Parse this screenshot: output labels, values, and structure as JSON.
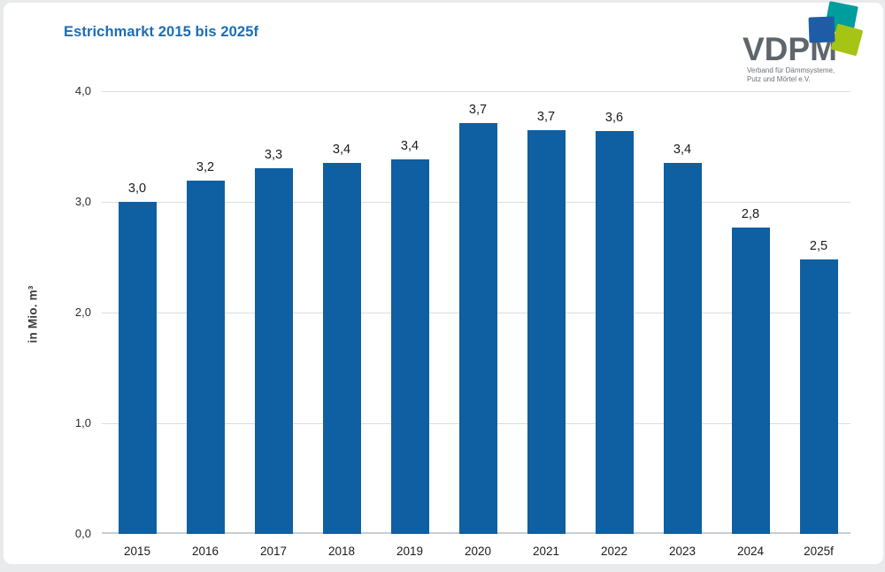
{
  "page": {
    "background_color": "#e8eaec",
    "card_color": "#ffffff"
  },
  "chart_data": {
    "type": "bar",
    "title": "Estrichmarkt 2015 bis 2025f",
    "title_color": "#1c6db4",
    "xlabel": "",
    "ylabel": "in Mio. m³",
    "categories": [
      "2015",
      "2016",
      "2017",
      "2018",
      "2019",
      "2020",
      "2021",
      "2022",
      "2023",
      "2024",
      "2025f"
    ],
    "values": [
      3.0,
      3.2,
      3.3,
      3.4,
      3.4,
      3.7,
      3.7,
      3.6,
      3.4,
      2.8,
      2.5
    ],
    "values_precise": [
      3.0,
      3.19,
      3.3,
      3.35,
      3.38,
      3.71,
      3.65,
      3.64,
      3.35,
      2.77,
      2.48
    ],
    "value_labels": [
      "3,0",
      "3,2",
      "3,3",
      "3,4",
      "3,4",
      "3,7",
      "3,7",
      "3,6",
      "3,4",
      "2,8",
      "2,5"
    ],
    "ylim": [
      0,
      4
    ],
    "yticks": [
      4,
      3,
      2,
      1,
      0
    ],
    "ytick_labels": [
      "4,0",
      "3,0",
      "2,0",
      "1,0",
      "0,0"
    ],
    "bar_color": "#0f5fa3",
    "grid": true,
    "legend": null
  },
  "logo": {
    "name": "VDPM",
    "subtitle_line1": "Verband für Dämmsysteme,",
    "subtitle_line2": "Putz und Mörtel e.V.",
    "colors": {
      "teal": "#009d9f",
      "blue": "#1e5da5",
      "green": "#a6c414",
      "text": "#5e666c"
    }
  }
}
